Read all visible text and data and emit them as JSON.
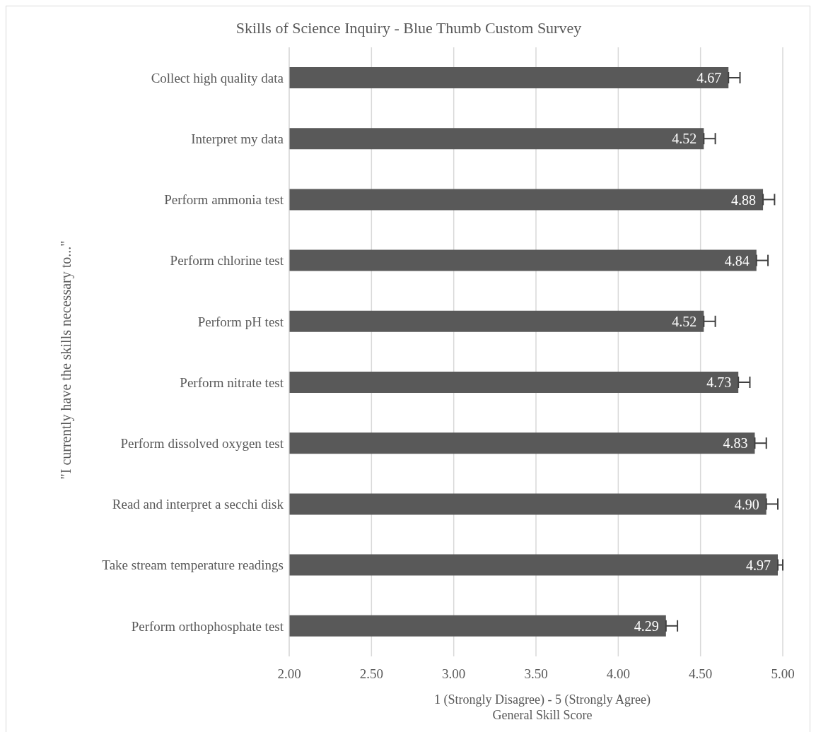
{
  "chart_data": {
    "type": "bar",
    "orientation": "horizontal",
    "title": "Skills of Science Inquiry - Blue Thumb Custom Survey",
    "xlabel": "1 (Strongly Disagree) - 5 (Strongly Agree)\nGeneral Skill Score",
    "ylabel": "\"I currently have the skills necessary to...\"",
    "categories": [
      "Collect high quality data",
      "Interpret my data",
      "Perform ammonia test",
      "Perform chlorine test",
      "Perform pH test",
      "Perform nitrate test",
      "Perform dissolved oxygen test",
      "Read and interpret a secchi disk",
      "Take stream temperature readings",
      "Perform orthophosphate test"
    ],
    "values": [
      4.67,
      4.52,
      4.88,
      4.84,
      4.52,
      4.73,
      4.83,
      4.9,
      4.97,
      4.29
    ],
    "value_labels": [
      "4.67",
      "4.52",
      "4.88",
      "4.84",
      "4.52",
      "4.73",
      "4.83",
      "4.90",
      "4.97",
      "4.29"
    ],
    "errors": [
      [
        4.67,
        4.74
      ],
      [
        4.52,
        4.59
      ],
      [
        4.88,
        4.95
      ],
      [
        4.84,
        4.91
      ],
      [
        4.52,
        4.59
      ],
      [
        4.73,
        4.8
      ],
      [
        4.83,
        4.9
      ],
      [
        4.9,
        4.97
      ],
      [
        4.97,
        5.0
      ],
      [
        4.29,
        4.36
      ]
    ],
    "color": "#595959",
    "xlim": [
      2,
      5
    ],
    "xticks": [
      {
        "value": 2,
        "label": "2.00"
      },
      {
        "value": 2.5,
        "label": "2.50"
      },
      {
        "value": 3,
        "label": "3.00"
      },
      {
        "value": 3.5,
        "label": "3.50"
      },
      {
        "value": 4,
        "label": "4.00"
      },
      {
        "value": 4.5,
        "label": "4.50"
      },
      {
        "value": 5,
        "label": "5.00"
      }
    ],
    "grid": "x"
  }
}
